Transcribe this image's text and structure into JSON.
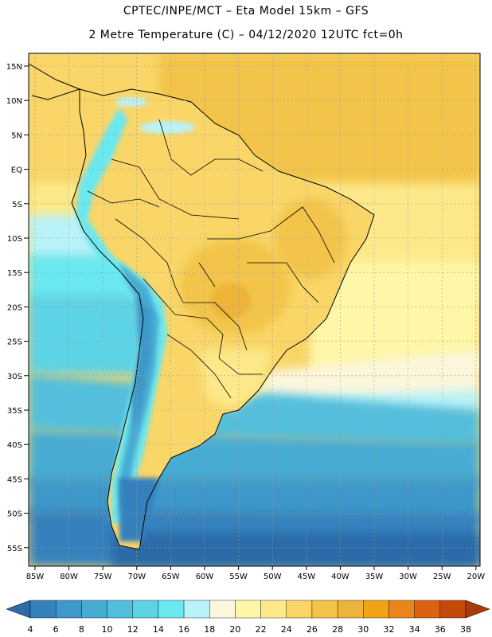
{
  "header": {
    "line1": "CPTEC/INPE/MCT –  Eta Model 15km – GFS",
    "line2": "2 Metre Temperature (C) – 04/12/2020 12UTC fct=0h"
  },
  "map": {
    "lat_labels": [
      "15N",
      "10N",
      "5N",
      "EQ",
      "5S",
      "10S",
      "15S",
      "20S",
      "25S",
      "30S",
      "35S",
      "40S",
      "45S",
      "50S",
      "55S"
    ],
    "lon_labels": [
      "85W",
      "80W",
      "75W",
      "70W",
      "65W",
      "60W",
      "55W",
      "50W",
      "45W",
      "40W",
      "35W",
      "30W",
      "25W",
      "20W"
    ]
  },
  "colorbar": {
    "levels": [
      "4",
      "6",
      "8",
      "10",
      "12",
      "14",
      "16",
      "18",
      "20",
      "22",
      "24",
      "26",
      "28",
      "30",
      "32",
      "34",
      "36",
      "38"
    ],
    "colors": [
      "#2c6aa8",
      "#3581bd",
      "#3e98c9",
      "#47acd4",
      "#52bfdc",
      "#5dd3e6",
      "#6ae8f0",
      "#b9f2f8",
      "#fcf6dc",
      "#fef7a8",
      "#fde98a",
      "#f9d667",
      "#f2c44a",
      "#eeb339",
      "#f1a317",
      "#e8861b",
      "#dd6210",
      "#c44a0a",
      "#a83b0c"
    ]
  }
}
